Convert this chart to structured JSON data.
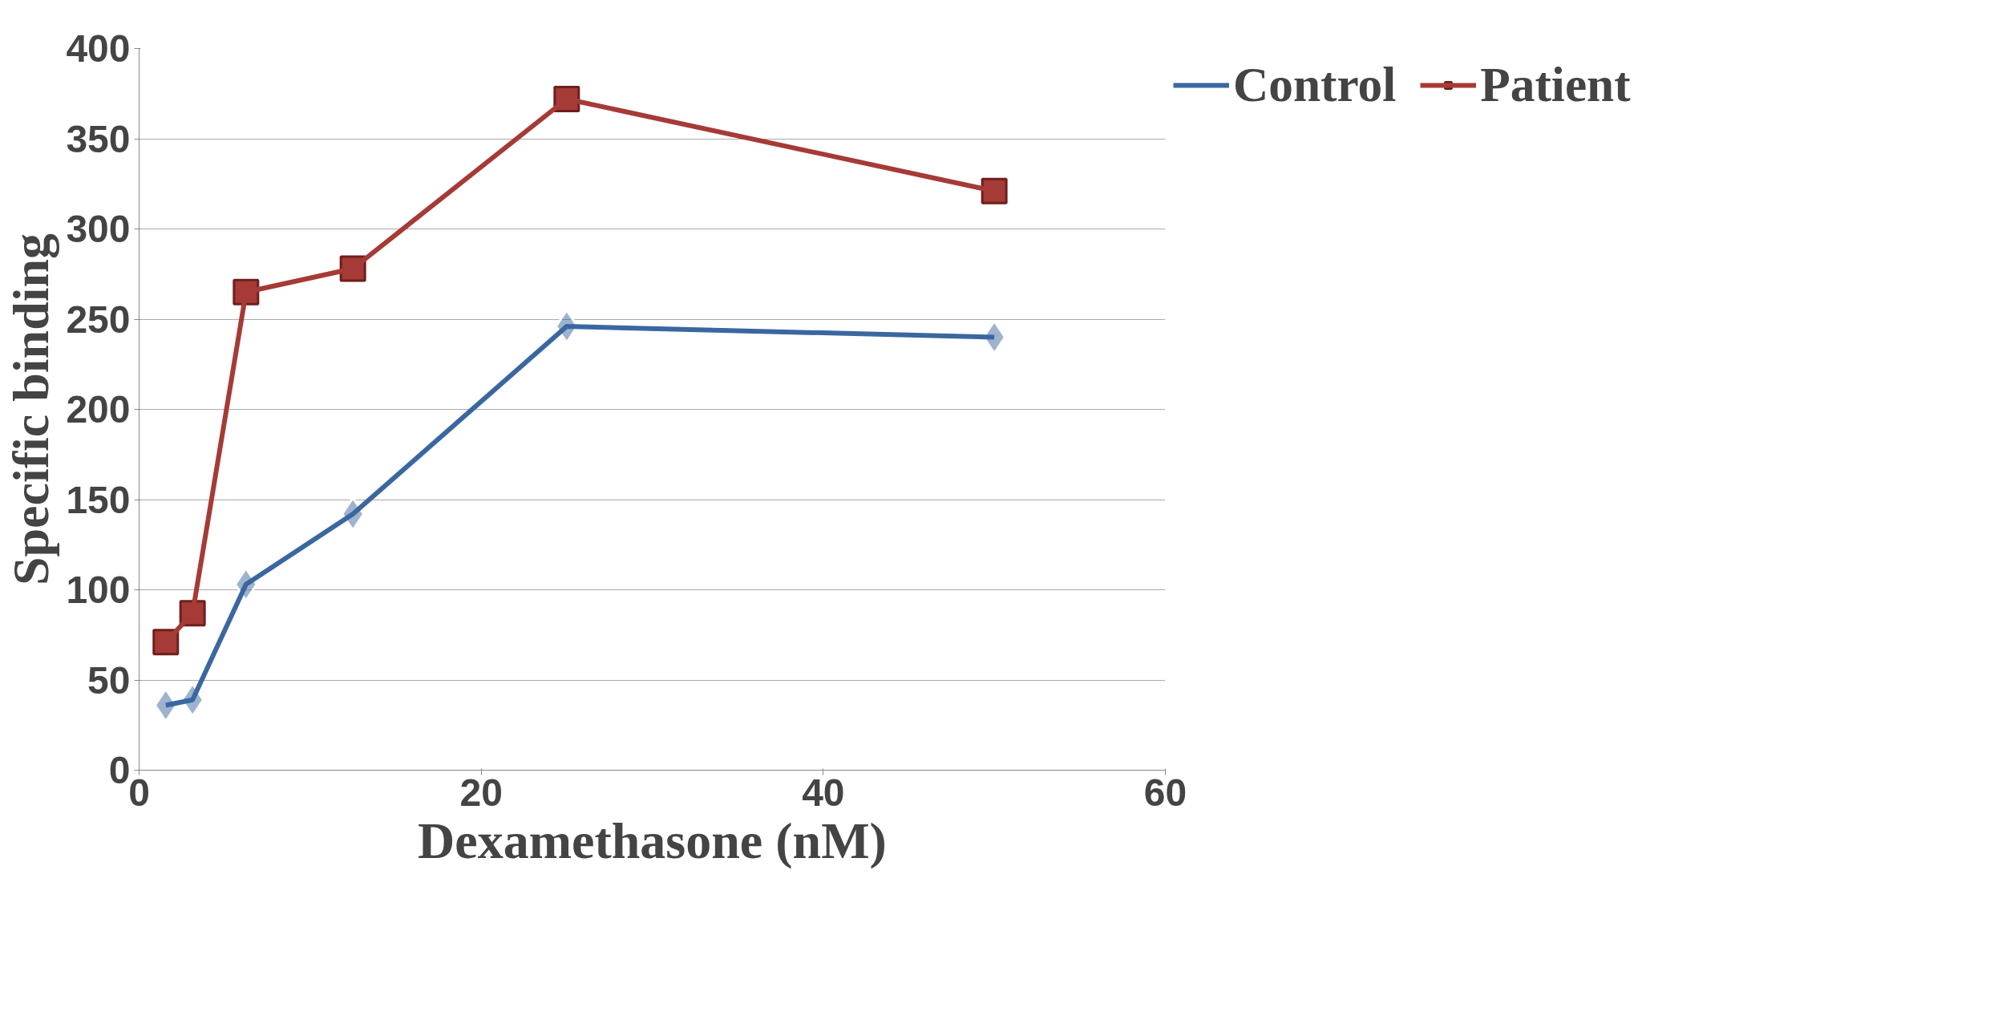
{
  "chart_data": {
    "type": "line",
    "xlabel": "Dexamethasone (nM)",
    "ylabel": "Specific binding",
    "xlim": [
      0,
      60
    ],
    "xticks": [
      0,
      20,
      40,
      60
    ],
    "ylim": [
      0,
      400
    ],
    "yticks": [
      0,
      50,
      100,
      150,
      200,
      250,
      300,
      350,
      400
    ],
    "grid": "y",
    "legend": "top right",
    "series": [
      {
        "name": "Control",
        "color": "#3b67a0",
        "marker": "diamond",
        "x": [
          1.56,
          3.125,
          6.25,
          12.5,
          25,
          50
        ],
        "values": [
          36,
          39,
          103,
          142,
          246,
          240
        ]
      },
      {
        "name": "Patient",
        "color": "#a63a36",
        "marker": "square",
        "x": [
          1.56,
          3.125,
          6.25,
          12.5,
          25,
          50
        ],
        "values": [
          71,
          87,
          265,
          278,
          372,
          321
        ]
      }
    ]
  }
}
